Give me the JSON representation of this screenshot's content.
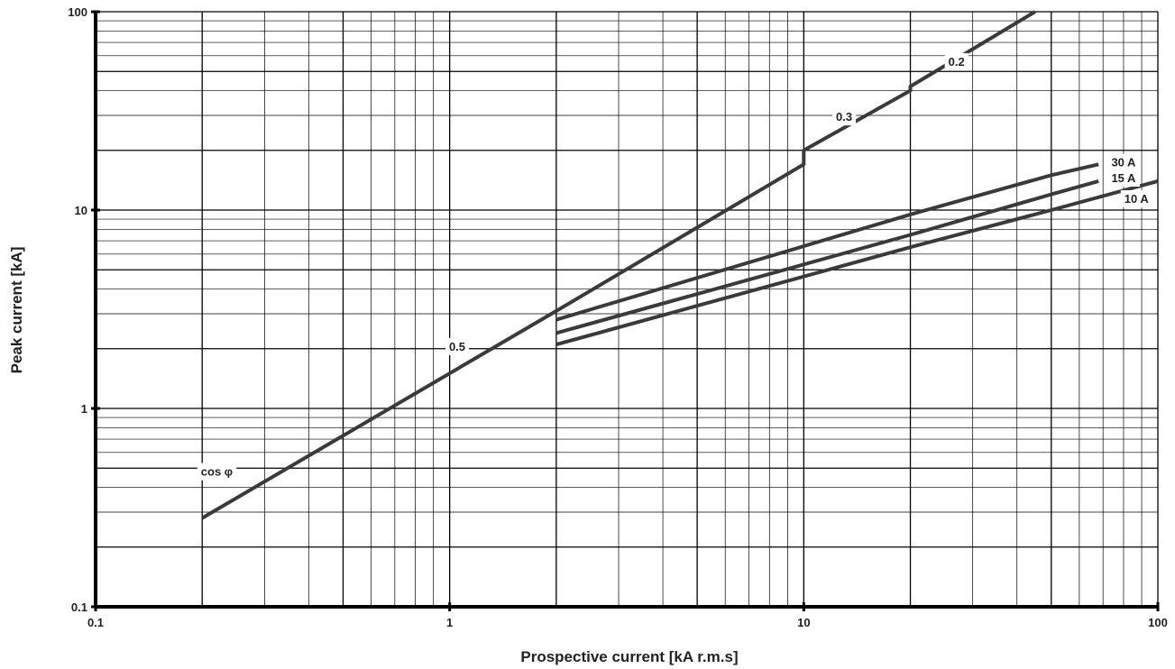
{
  "chart_data": {
    "type": "line",
    "xscale": "log",
    "yscale": "log",
    "xlim": [
      0.1,
      100
    ],
    "ylim": [
      0.1,
      100
    ],
    "grid": true,
    "xlabel": "Prospective current [kA r.m.s]",
    "ylabel": "Peak current  [kA]",
    "xticks": [
      {
        "value": 0.1,
        "label": "0.1"
      },
      {
        "value": 1,
        "label": "1"
      },
      {
        "value": 10,
        "label": "10"
      },
      {
        "value": 100,
        "label": "100"
      }
    ],
    "yticks": [
      {
        "value": 0.1,
        "label": "0.1"
      },
      {
        "value": 1,
        "label": "1"
      },
      {
        "value": 10,
        "label": "10"
      },
      {
        "value": 100,
        "label": "100"
      }
    ],
    "series": [
      {
        "name": "cos φ",
        "x": [
          0.2,
          2,
          10,
          10,
          20,
          20,
          45
        ],
        "y": [
          0.28,
          3.1,
          17,
          20,
          40,
          42,
          100
        ]
      },
      {
        "name": "30 A",
        "x": [
          2,
          20,
          50,
          68
        ],
        "y": [
          2.8,
          9.5,
          15,
          17
        ]
      },
      {
        "name": "15 A",
        "x": [
          2,
          20,
          50,
          68
        ],
        "y": [
          2.4,
          7.5,
          12,
          14
        ]
      },
      {
        "name": "10 A",
        "x": [
          2,
          20,
          50,
          100
        ],
        "y": [
          2.1,
          6.5,
          10,
          14
        ]
      }
    ],
    "annotations": [
      {
        "text": "0.2",
        "x": 27,
        "y": 56
      },
      {
        "text": "0.3",
        "x": 13,
        "y": 29.5
      },
      {
        "text": "0.5",
        "x": 1.05,
        "y": 2.05
      },
      {
        "text": "cos φ",
        "x": 0.22,
        "y": 0.48
      },
      {
        "text": "30 A",
        "x": 80,
        "y": 17.4
      },
      {
        "text": "15 A",
        "x": 80,
        "y": 14.5
      },
      {
        "text": "10 A",
        "x": 87,
        "y": 11.4
      }
    ]
  }
}
